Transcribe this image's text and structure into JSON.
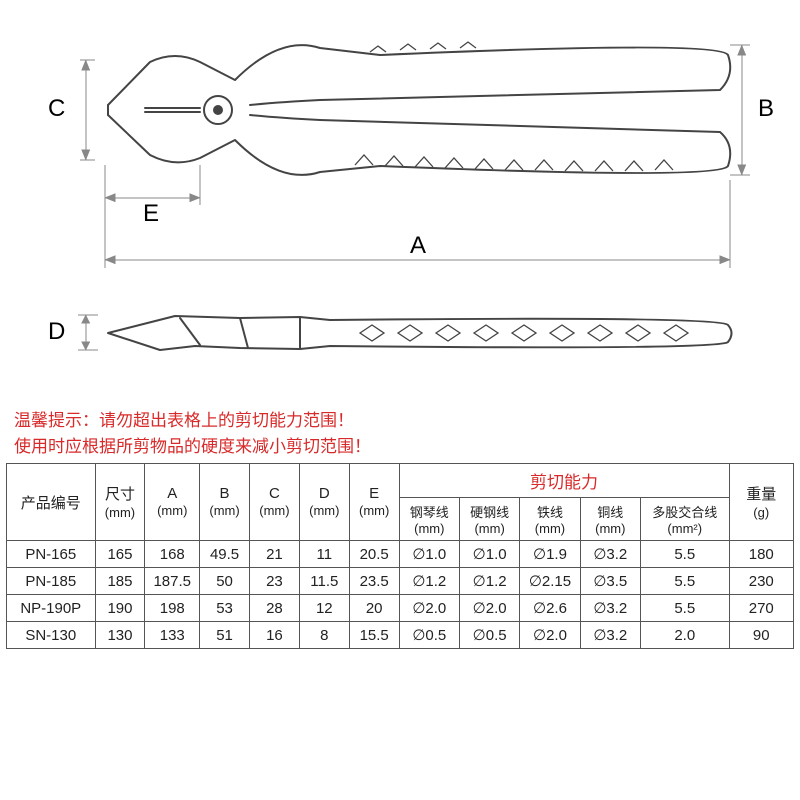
{
  "diagram": {
    "labels": {
      "A": "A",
      "B": "B",
      "C": "C",
      "D": "D",
      "E": "E"
    },
    "stroke": "#555555",
    "stroke_thin": "#808080",
    "stroke_width": 1.5
  },
  "warning": {
    "line1": "温馨提示：请勿超出表格上的剪切能力范围！",
    "line2": "使用时应根据所剪物品的硬度来减小剪切范围！",
    "color": "#d82a2a"
  },
  "table": {
    "headers": {
      "product_no": "产品编号",
      "size": "尺寸",
      "A": "A",
      "B": "B",
      "C": "C",
      "D": "D",
      "E": "E",
      "mm": "(mm)",
      "cutting": "剪切能力",
      "col_piano": "钢琴线",
      "col_hard": "硬钢线",
      "col_iron": "铁线",
      "col_copper": "铜线",
      "col_multi": "多股交合线",
      "col_multi_unit": "(mm²)",
      "weight": "重量",
      "g": "(g)"
    },
    "rows": [
      {
        "no": "PN-165",
        "size": "165",
        "A": "168",
        "B": "49.5",
        "C": "21",
        "D": "11",
        "E": "20.5",
        "piano": "∅1.0",
        "hard": "∅1.0",
        "iron": "∅1.9",
        "copper": "∅3.2",
        "multi": "5.5",
        "weight": "180"
      },
      {
        "no": "PN-185",
        "size": "185",
        "A": "187.5",
        "B": "50",
        "C": "23",
        "D": "11.5",
        "E": "23.5",
        "piano": "∅1.2",
        "hard": "∅1.2",
        "iron": "∅2.15",
        "copper": "∅3.5",
        "multi": "5.5",
        "weight": "230"
      },
      {
        "no": "NP-190P",
        "size": "190",
        "A": "198",
        "B": "53",
        "C": "28",
        "D": "12",
        "E": "20",
        "piano": "∅2.0",
        "hard": "∅2.0",
        "iron": "∅2.6",
        "copper": "∅3.2",
        "multi": "5.5",
        "weight": "270"
      },
      {
        "no": "SN-130",
        "size": "130",
        "A": "133",
        "B": "51",
        "C": "16",
        "D": "8",
        "E": "15.5",
        "piano": "∅0.5",
        "hard": "∅0.5",
        "iron": "∅2.0",
        "copper": "∅3.2",
        "multi": "2.0",
        "weight": "90"
      }
    ]
  }
}
